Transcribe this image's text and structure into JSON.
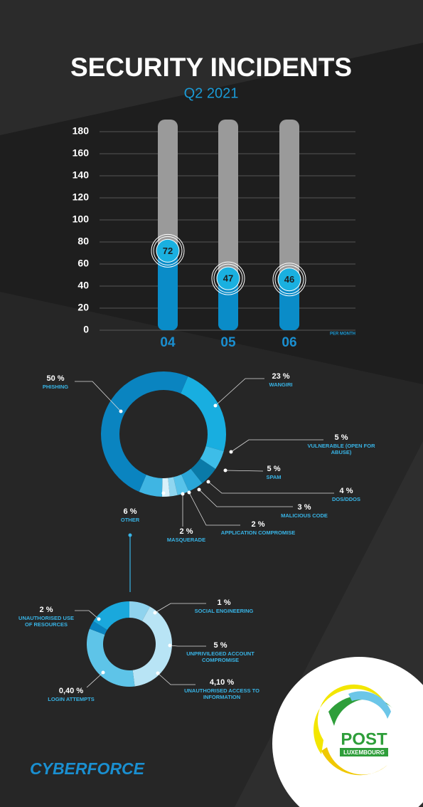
{
  "chart_data": [
    {
      "type": "bar",
      "title": "SECURITY INCIDENTS",
      "subtitle": "Q2 2021",
      "x_label": "PER MONTH",
      "categories": [
        "04",
        "05",
        "06"
      ],
      "values": [
        72,
        47,
        46
      ],
      "color": "#0a8cc8",
      "ylim": [
        0,
        180
      ],
      "yticks": [
        0,
        20,
        40,
        60,
        80,
        100,
        120,
        140,
        160,
        180
      ],
      "grid": true
    },
    {
      "type": "donut",
      "categories": [
        "WANGIRI",
        "VULNERABLE (OPEN FOR ABUSE)",
        "SPAM",
        "DOS/DDOS",
        "MALICIOUS CODE",
        "APPLICATION COMPROMISE",
        "MASQUERADE",
        "OTHER",
        "PHISHING"
      ],
      "values": [
        23,
        5,
        5,
        4,
        3,
        2,
        2,
        6,
        50
      ],
      "value_labels": [
        "23 %",
        "5 %",
        "5 %",
        "4 %",
        "3 %",
        "2 %",
        "2 %",
        "6 %",
        "50 %"
      ],
      "colors": [
        "#18aee0",
        "#3dbde8",
        "#0a7aa8",
        "#2aa6d8",
        "#58c3ea",
        "#8fd6f0",
        "#d8f0fa",
        "#3fb5e3",
        "#0a84c0"
      ]
    },
    {
      "type": "donut",
      "categories": [
        "SOCIAL ENGINEERING",
        "UNPRIVILEGED ACCOUNT COMPROMISE",
        "UNAUTHORISED ACCESS TO INFORMATION",
        "LOGIN ATTEMPTS",
        "UNAUTHORISED USE OF RESOURCES"
      ],
      "values": [
        1,
        5,
        4.1,
        0.4,
        2
      ],
      "value_labels": [
        "1 %",
        "5 %",
        "4,10 %",
        "0,40 %",
        "2 %"
      ],
      "colors": [
        "#8fd3ee",
        "#b8e4f5",
        "#5ec4e8",
        "#0a84c0",
        "#1aa8dc"
      ]
    }
  ],
  "branding": {
    "name": "CYBERFORCE",
    "logo_title": "POST",
    "logo_subtitle": "LUXEMBOURG"
  }
}
